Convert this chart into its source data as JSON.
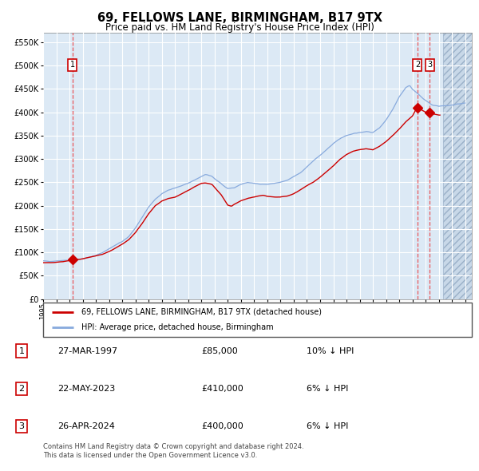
{
  "title": "69, FELLOWS LANE, BIRMINGHAM, B17 9TX",
  "subtitle": "Price paid vs. HM Land Registry's House Price Index (HPI)",
  "title_fontsize": 10.5,
  "subtitle_fontsize": 8.5,
  "ylim": [
    0,
    570000
  ],
  "xlim_start": 1995.0,
  "xlim_end": 2027.5,
  "plot_bg_color": "#dce9f5",
  "hatch_area_start": 2025.33,
  "hatch_area_end": 2027.5,
  "grid_color": "#ffffff",
  "red_line_color": "#cc0000",
  "blue_line_color": "#88aadd",
  "sale_points": [
    {
      "date_num": 1997.23,
      "price": 85000,
      "label": "1"
    },
    {
      "date_num": 2023.38,
      "price": 410000,
      "label": "2"
    },
    {
      "date_num": 2024.32,
      "price": 400000,
      "label": "3"
    }
  ],
  "legend_red_label": "69, FELLOWS LANE, BIRMINGHAM, B17 9TX (detached house)",
  "legend_blue_label": "HPI: Average price, detached house, Birmingham",
  "table_rows": [
    {
      "num": "1",
      "date": "27-MAR-1997",
      "price": "£85,000",
      "hpi": "10% ↓ HPI"
    },
    {
      "num": "2",
      "date": "22-MAY-2023",
      "price": "£410,000",
      "hpi": "6% ↓ HPI"
    },
    {
      "num": "3",
      "date": "26-APR-2024",
      "price": "£400,000",
      "hpi": "6% ↓ HPI"
    }
  ],
  "footer": "Contains HM Land Registry data © Crown copyright and database right 2024.\nThis data is licensed under the Open Government Licence v3.0.",
  "ytick_labels": [
    "£0",
    "£50K",
    "£100K",
    "£150K",
    "£200K",
    "£250K",
    "£300K",
    "£350K",
    "£400K",
    "£450K",
    "£500K",
    "£550K"
  ],
  "ytick_values": [
    0,
    50000,
    100000,
    150000,
    200000,
    250000,
    300000,
    350000,
    400000,
    450000,
    500000,
    550000
  ]
}
